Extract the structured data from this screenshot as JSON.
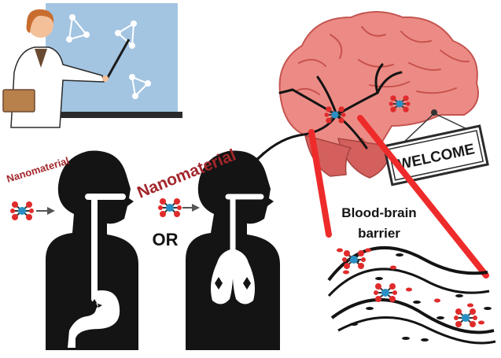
{
  "labels": {
    "nanomaterial_small": "Nanomaterial",
    "nanomaterial_large": "Nanomaterial",
    "or": "OR",
    "barrier_line1": "Blood-brain",
    "barrier_line2": "barrier",
    "sign": "WELCOME"
  },
  "colors": {
    "label_red": "#a3272b",
    "silhouette": "#141414",
    "brain_pink": "#ec8b85",
    "brain_dark": "#d3605c",
    "barrier_red": "#ee2b2b",
    "board_blue": "#a3c5e2",
    "molecule_red": "#e02b2b",
    "molecule_blue": "#2a8fc4"
  },
  "icons": [
    "teacher-icon",
    "molecule-icon",
    "brain-icon",
    "lungs-icon",
    "stomach-icon",
    "blood-vessel-icon",
    "welcome-sign-icon"
  ]
}
